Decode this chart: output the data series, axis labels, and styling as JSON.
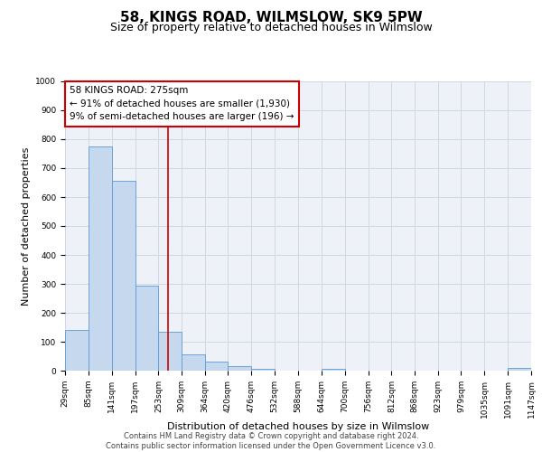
{
  "title": "58, KINGS ROAD, WILMSLOW, SK9 5PW",
  "subtitle": "Size of property relative to detached houses in Wilmslow",
  "xlabel": "Distribution of detached houses by size in Wilmslow",
  "ylabel": "Number of detached properties",
  "bar_color": "#c5d8ed",
  "bar_edge_color": "#5b9bd5",
  "grid_color": "#d0d8e4",
  "bg_color": "#eef2f8",
  "vline_color": "#cc0000",
  "vline_x": 275,
  "annotation_line1": "58 KINGS ROAD: 275sqm",
  "annotation_line2": "← 91% of detached houses are smaller (1,930)",
  "annotation_line3": "9% of semi-detached houses are larger (196) →",
  "annotation_box_color": "#cc0000",
  "annotation_text_fontsize": 7.5,
  "bin_edges": [
    29,
    85,
    141,
    197,
    253,
    309,
    364,
    420,
    476,
    532,
    588,
    644,
    700,
    756,
    812,
    868,
    923,
    979,
    1035,
    1091,
    1147
  ],
  "bar_heights": [
    140,
    775,
    655,
    295,
    135,
    57,
    32,
    17,
    5,
    0,
    0,
    5,
    0,
    0,
    0,
    0,
    0,
    0,
    0,
    10
  ],
  "ylim": [
    0,
    1000
  ],
  "yticks": [
    0,
    100,
    200,
    300,
    400,
    500,
    600,
    700,
    800,
    900,
    1000
  ],
  "footer_text": "Contains HM Land Registry data © Crown copyright and database right 2024.\nContains public sector information licensed under the Open Government Licence v3.0.",
  "title_fontsize": 11,
  "subtitle_fontsize": 9,
  "xlabel_fontsize": 8,
  "ylabel_fontsize": 8,
  "tick_fontsize": 6.5,
  "footer_fontsize": 6.0
}
